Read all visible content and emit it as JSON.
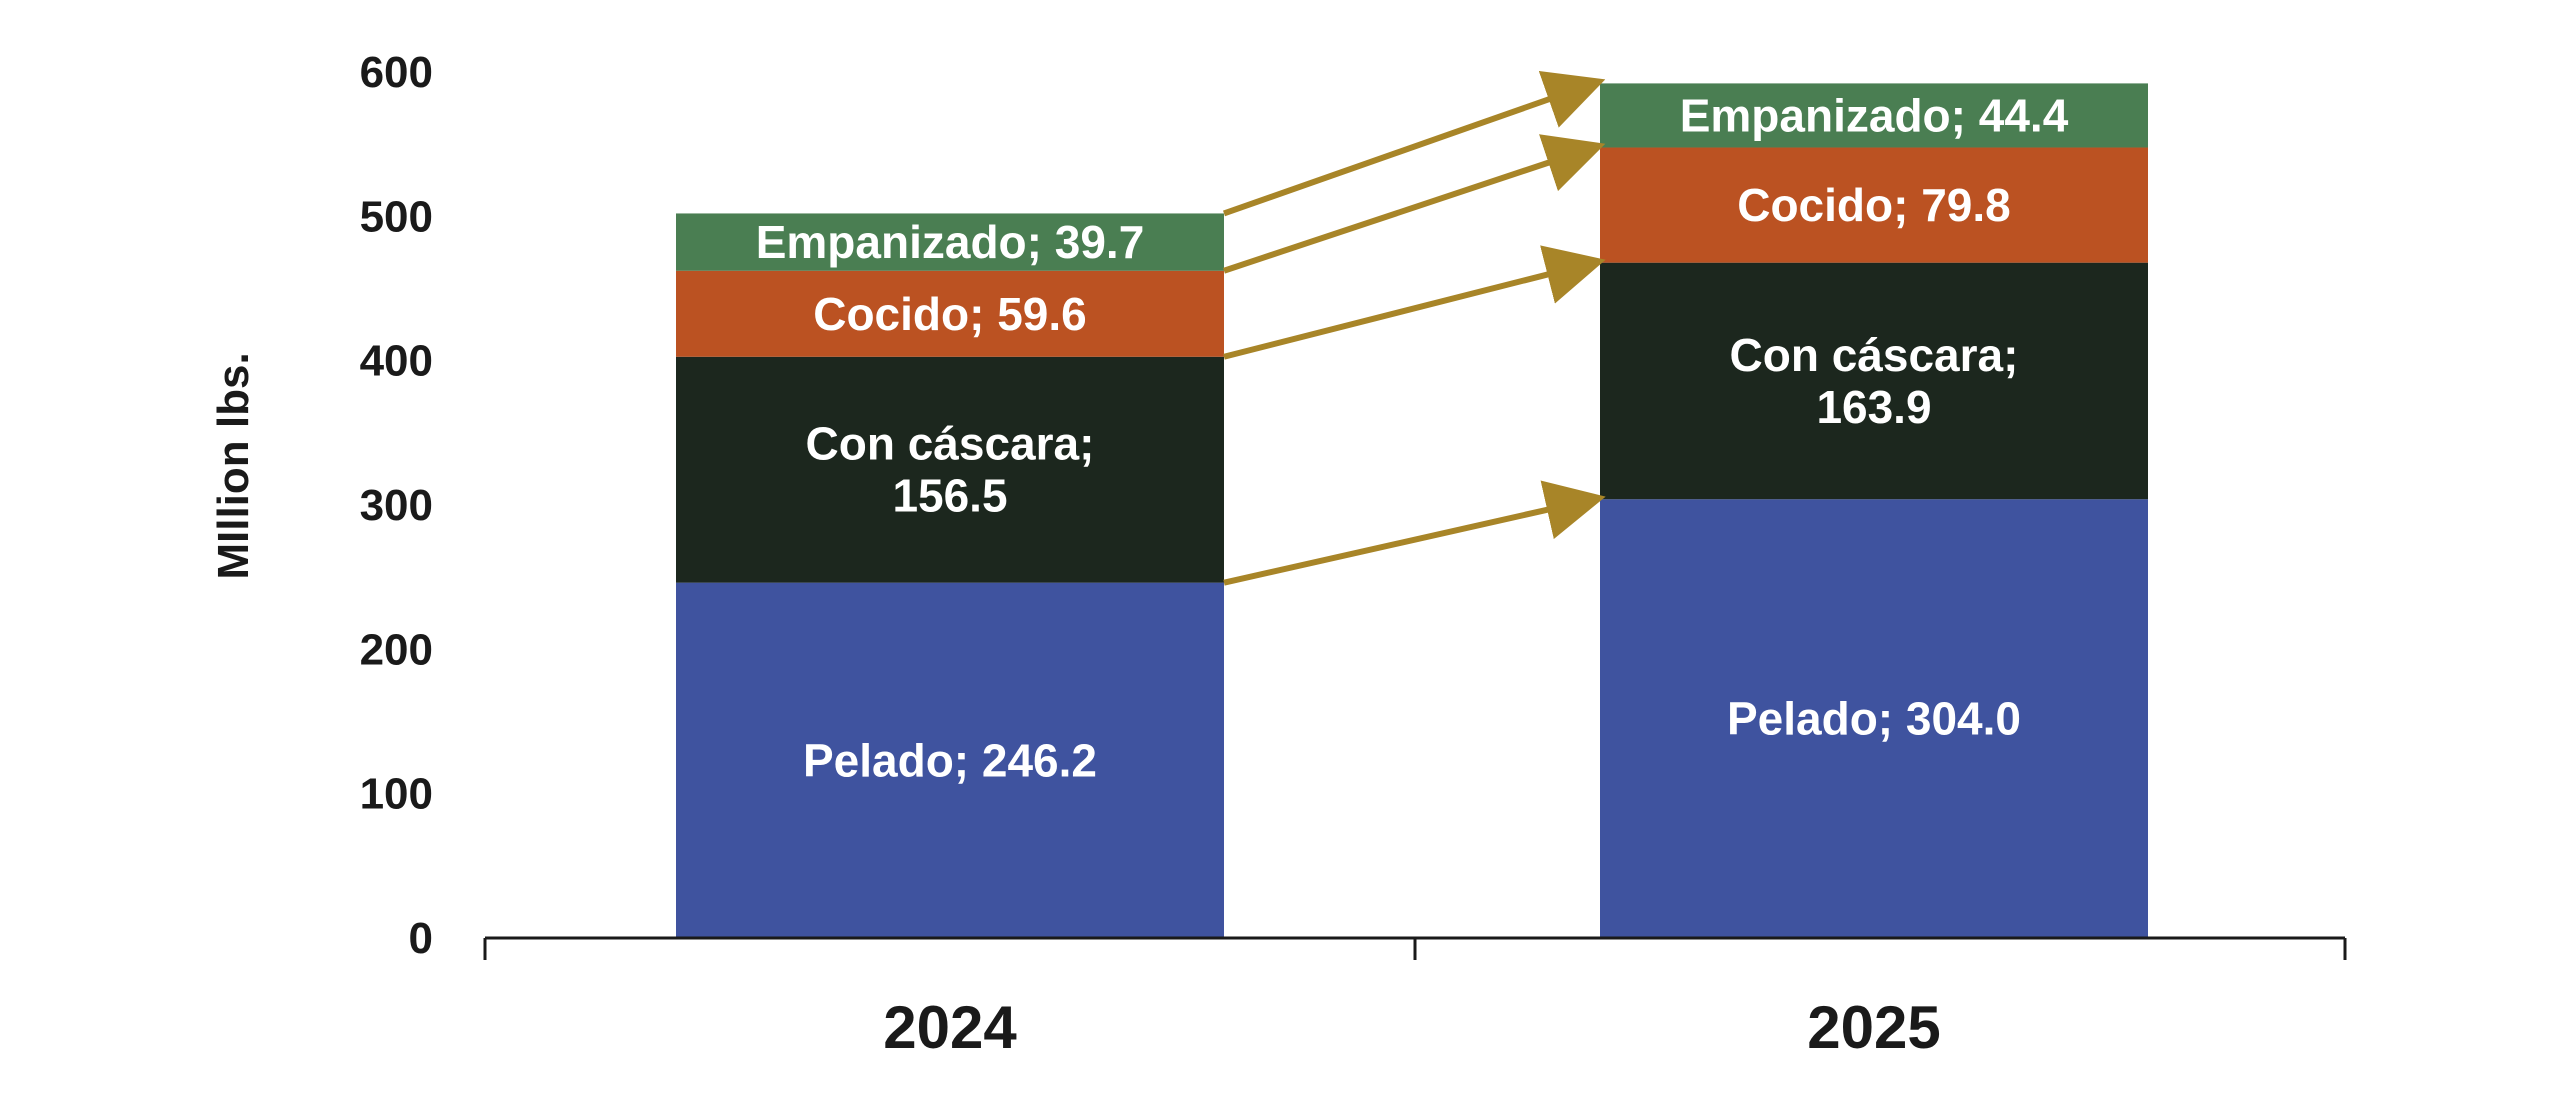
{
  "chart_data": {
    "type": "bar",
    "stacked": true,
    "categories": [
      "2024",
      "2025"
    ],
    "ylabel": "MIllion lbs.",
    "ylim": [
      0,
      600
    ],
    "yticks": [
      0,
      100,
      200,
      300,
      400,
      500,
      600
    ],
    "grid": false,
    "legend": "none",
    "series": [
      {
        "name": "Pelado",
        "color": "#3f539f",
        "values": [
          246.2,
          304.0
        ],
        "labels": [
          "Pelado; 246.2",
          "Pelado; 304.0"
        ]
      },
      {
        "name": "Con cáscara",
        "color": "#1c271e",
        "values": [
          156.5,
          163.9
        ],
        "labels": [
          [
            "Con cáscara;",
            "156.5"
          ],
          [
            "Con cáscara;",
            "163.9"
          ]
        ]
      },
      {
        "name": "Cocido",
        "color": "#bb5222",
        "values": [
          59.6,
          79.8
        ],
        "labels": [
          "Cocido;  59.6",
          "Cocido; 79.8"
        ]
      },
      {
        "name": "Empanizado",
        "color": "#4a7e52",
        "values": [
          39.7,
          44.4
        ],
        "labels": [
          "Empanizado; 39.7",
          "Empanizado; 44.4"
        ]
      }
    ],
    "arrows": {
      "color": "#a88528",
      "description": "connector arrows from top of each 2024 segment to top of matching 2025 segment"
    }
  }
}
